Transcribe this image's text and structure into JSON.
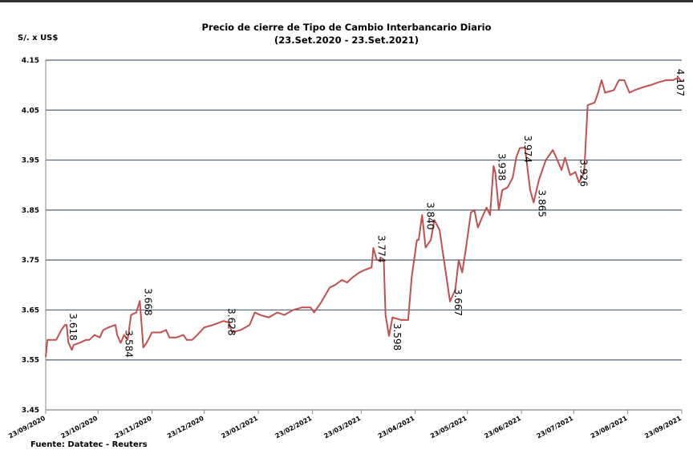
{
  "chart_data": {
    "type": "line",
    "title": "Precio de cierre de Tipo de Cambio Interbancario Diario",
    "subtitle": "(23.Set.2020 - 23.Set.2021)",
    "y_label": "S/. x US$",
    "source": "Fuente: Datatec - Reuters",
    "ylim": [
      3.45,
      4.15
    ],
    "yticks": [
      3.45,
      3.55,
      3.65,
      3.75,
      3.85,
      3.95,
      4.05,
      4.15
    ],
    "xlim": [
      "23/09/2020",
      "23/09/2021"
    ],
    "xticks": [
      "23/09/2020",
      "23/10/2020",
      "23/11/2020",
      "23/12/2020",
      "23/01/2021",
      "23/02/2021",
      "23/03/2021",
      "23/04/2021",
      "23/05/2021",
      "23/06/2021",
      "23/07/2021",
      "23/08/2021",
      "23/09/2021"
    ],
    "grid": true,
    "series": [
      {
        "name": "Tipo de cambio",
        "color": "#c0504d",
        "x": [
          "23/09/2020",
          "24/09/2020",
          "29/09/2020",
          "02/10/2020",
          "04/10/2020",
          "05/10/2020",
          "06/10/2020",
          "08/10/2020",
          "09/10/2020",
          "13/10/2020",
          "16/10/2020",
          "18/10/2020",
          "21/10/2020",
          "24/10/2020",
          "26/10/2020",
          "29/10/2020",
          "02/11/2020",
          "03/11/2020",
          "05/11/2020",
          "07/11/2020",
          "09/11/2020",
          "11/11/2020",
          "14/11/2020",
          "16/11/2020",
          "18/11/2020",
          "20/11/2020",
          "23/11/2020",
          "28/11/2020",
          "01/12/2020",
          "03/12/2020",
          "07/12/2020",
          "11/12/2020",
          "13/12/2020",
          "16/12/2020",
          "19/12/2020",
          "23/12/2020",
          "28/12/2020",
          "03/01/2021",
          "06/01/2021",
          "08/01/2021",
          "13/01/2021",
          "18/01/2021",
          "21/01/2021",
          "24/01/2021",
          "29/01/2021",
          "03/02/2021",
          "07/02/2021",
          "12/02/2021",
          "17/02/2021",
          "22/02/2021",
          "24/02/2021",
          "28/02/2021",
          "05/03/2021",
          "08/03/2021",
          "12/03/2021",
          "15/03/2021",
          "18/03/2021",
          "22/03/2021",
          "25/03/2021",
          "29/03/2021",
          "30/03/2021",
          "01/04/2021",
          "05/04/2021",
          "06/04/2021",
          "08/04/2021",
          "10/04/2021",
          "15/04/2021",
          "19/04/2021",
          "21/04/2021",
          "24/04/2021",
          "25/04/2021",
          "27/04/2021",
          "29/04/2021",
          "02/05/2021",
          "04/05/2021",
          "07/05/2021",
          "11/05/2021",
          "13/05/2021",
          "16/05/2021",
          "18/05/2021",
          "20/05/2021",
          "22/05/2021",
          "25/05/2021",
          "27/05/2021",
          "29/05/2021",
          "01/06/2021",
          "03/06/2021",
          "05/06/2021",
          "07/06/2021",
          "08/06/2021",
          "10/06/2021",
          "12/06/2021",
          "15/06/2021",
          "18/06/2021",
          "20/06/2021",
          "22/06/2021",
          "25/06/2021",
          "28/06/2021",
          "30/06/2021",
          "03/07/2021",
          "07/07/2021",
          "11/07/2021",
          "13/07/2021",
          "16/07/2021",
          "18/07/2021",
          "21/07/2021",
          "24/07/2021",
          "26/07/2021",
          "29/07/2021",
          "31/07/2021",
          "04/08/2021",
          "06/08/2021",
          "08/08/2021",
          "10/08/2021",
          "15/08/2021",
          "18/08/2021",
          "21/08/2021",
          "24/08/2021",
          "27/08/2021",
          "31/08/2021",
          "05/09/2021",
          "09/09/2021",
          "14/09/2021",
          "18/09/2021",
          "21/09/2021",
          "23/09/2021"
        ],
        "values": [
          3.556,
          3.59,
          3.59,
          3.61,
          3.62,
          3.62,
          3.585,
          3.57,
          3.58,
          3.585,
          3.59,
          3.59,
          3.6,
          3.595,
          3.61,
          3.615,
          3.62,
          3.6,
          3.584,
          3.6,
          3.59,
          3.64,
          3.645,
          3.668,
          3.575,
          3.585,
          3.605,
          3.605,
          3.61,
          3.595,
          3.595,
          3.6,
          3.59,
          3.59,
          3.6,
          3.615,
          3.62,
          3.628,
          3.625,
          3.605,
          3.61,
          3.62,
          3.645,
          3.64,
          3.635,
          3.645,
          3.64,
          3.65,
          3.655,
          3.655,
          3.645,
          3.665,
          3.695,
          3.7,
          3.71,
          3.705,
          3.715,
          3.725,
          3.73,
          3.735,
          3.774,
          3.75,
          3.75,
          3.64,
          3.598,
          3.635,
          3.63,
          3.63,
          3.715,
          3.79,
          3.79,
          3.84,
          3.775,
          3.79,
          3.83,
          3.81,
          3.715,
          3.667,
          3.69,
          3.75,
          3.725,
          3.77,
          3.845,
          3.85,
          3.815,
          3.84,
          3.855,
          3.84,
          3.938,
          3.925,
          3.85,
          3.89,
          3.895,
          3.915,
          3.955,
          3.974,
          3.975,
          3.89,
          3.865,
          3.91,
          3.95,
          3.97,
          3.955,
          3.93,
          3.955,
          3.92,
          3.926,
          3.905,
          3.925,
          4.06,
          4.065,
          4.085,
          4.11,
          4.085,
          4.09,
          4.11,
          4.11,
          4.085,
          4.09,
          4.095,
          4.1,
          4.105,
          4.11,
          4.11,
          4.115,
          4.107
        ]
      }
    ],
    "annotations": [
      {
        "x": "04/10/2020",
        "value": 3.618,
        "label": "3.618"
      },
      {
        "x": "16/11/2020",
        "value": 3.668,
        "label": "3.668"
      },
      {
        "x": "05/11/2020",
        "value": 3.584,
        "label": "3.584"
      },
      {
        "x": "03/01/2021",
        "value": 3.628,
        "label": "3.628"
      },
      {
        "x": "30/03/2021",
        "value": 3.774,
        "label": "3.774"
      },
      {
        "x": "08/04/2021",
        "value": 3.598,
        "label": "3.598"
      },
      {
        "x": "27/04/2021",
        "value": 3.84,
        "label": "3.840"
      },
      {
        "x": "13/05/2021",
        "value": 3.667,
        "label": "3.667"
      },
      {
        "x": "07/06/2021",
        "value": 3.938,
        "label": "3.938"
      },
      {
        "x": "22/06/2021",
        "value": 3.974,
        "label": "3.974"
      },
      {
        "x": "30/06/2021",
        "value": 3.865,
        "label": "3.865"
      },
      {
        "x": "24/07/2021",
        "value": 3.926,
        "label": "3.926"
      },
      {
        "x": "23/09/2021",
        "value": 4.107,
        "label": "4.107"
      }
    ]
  }
}
